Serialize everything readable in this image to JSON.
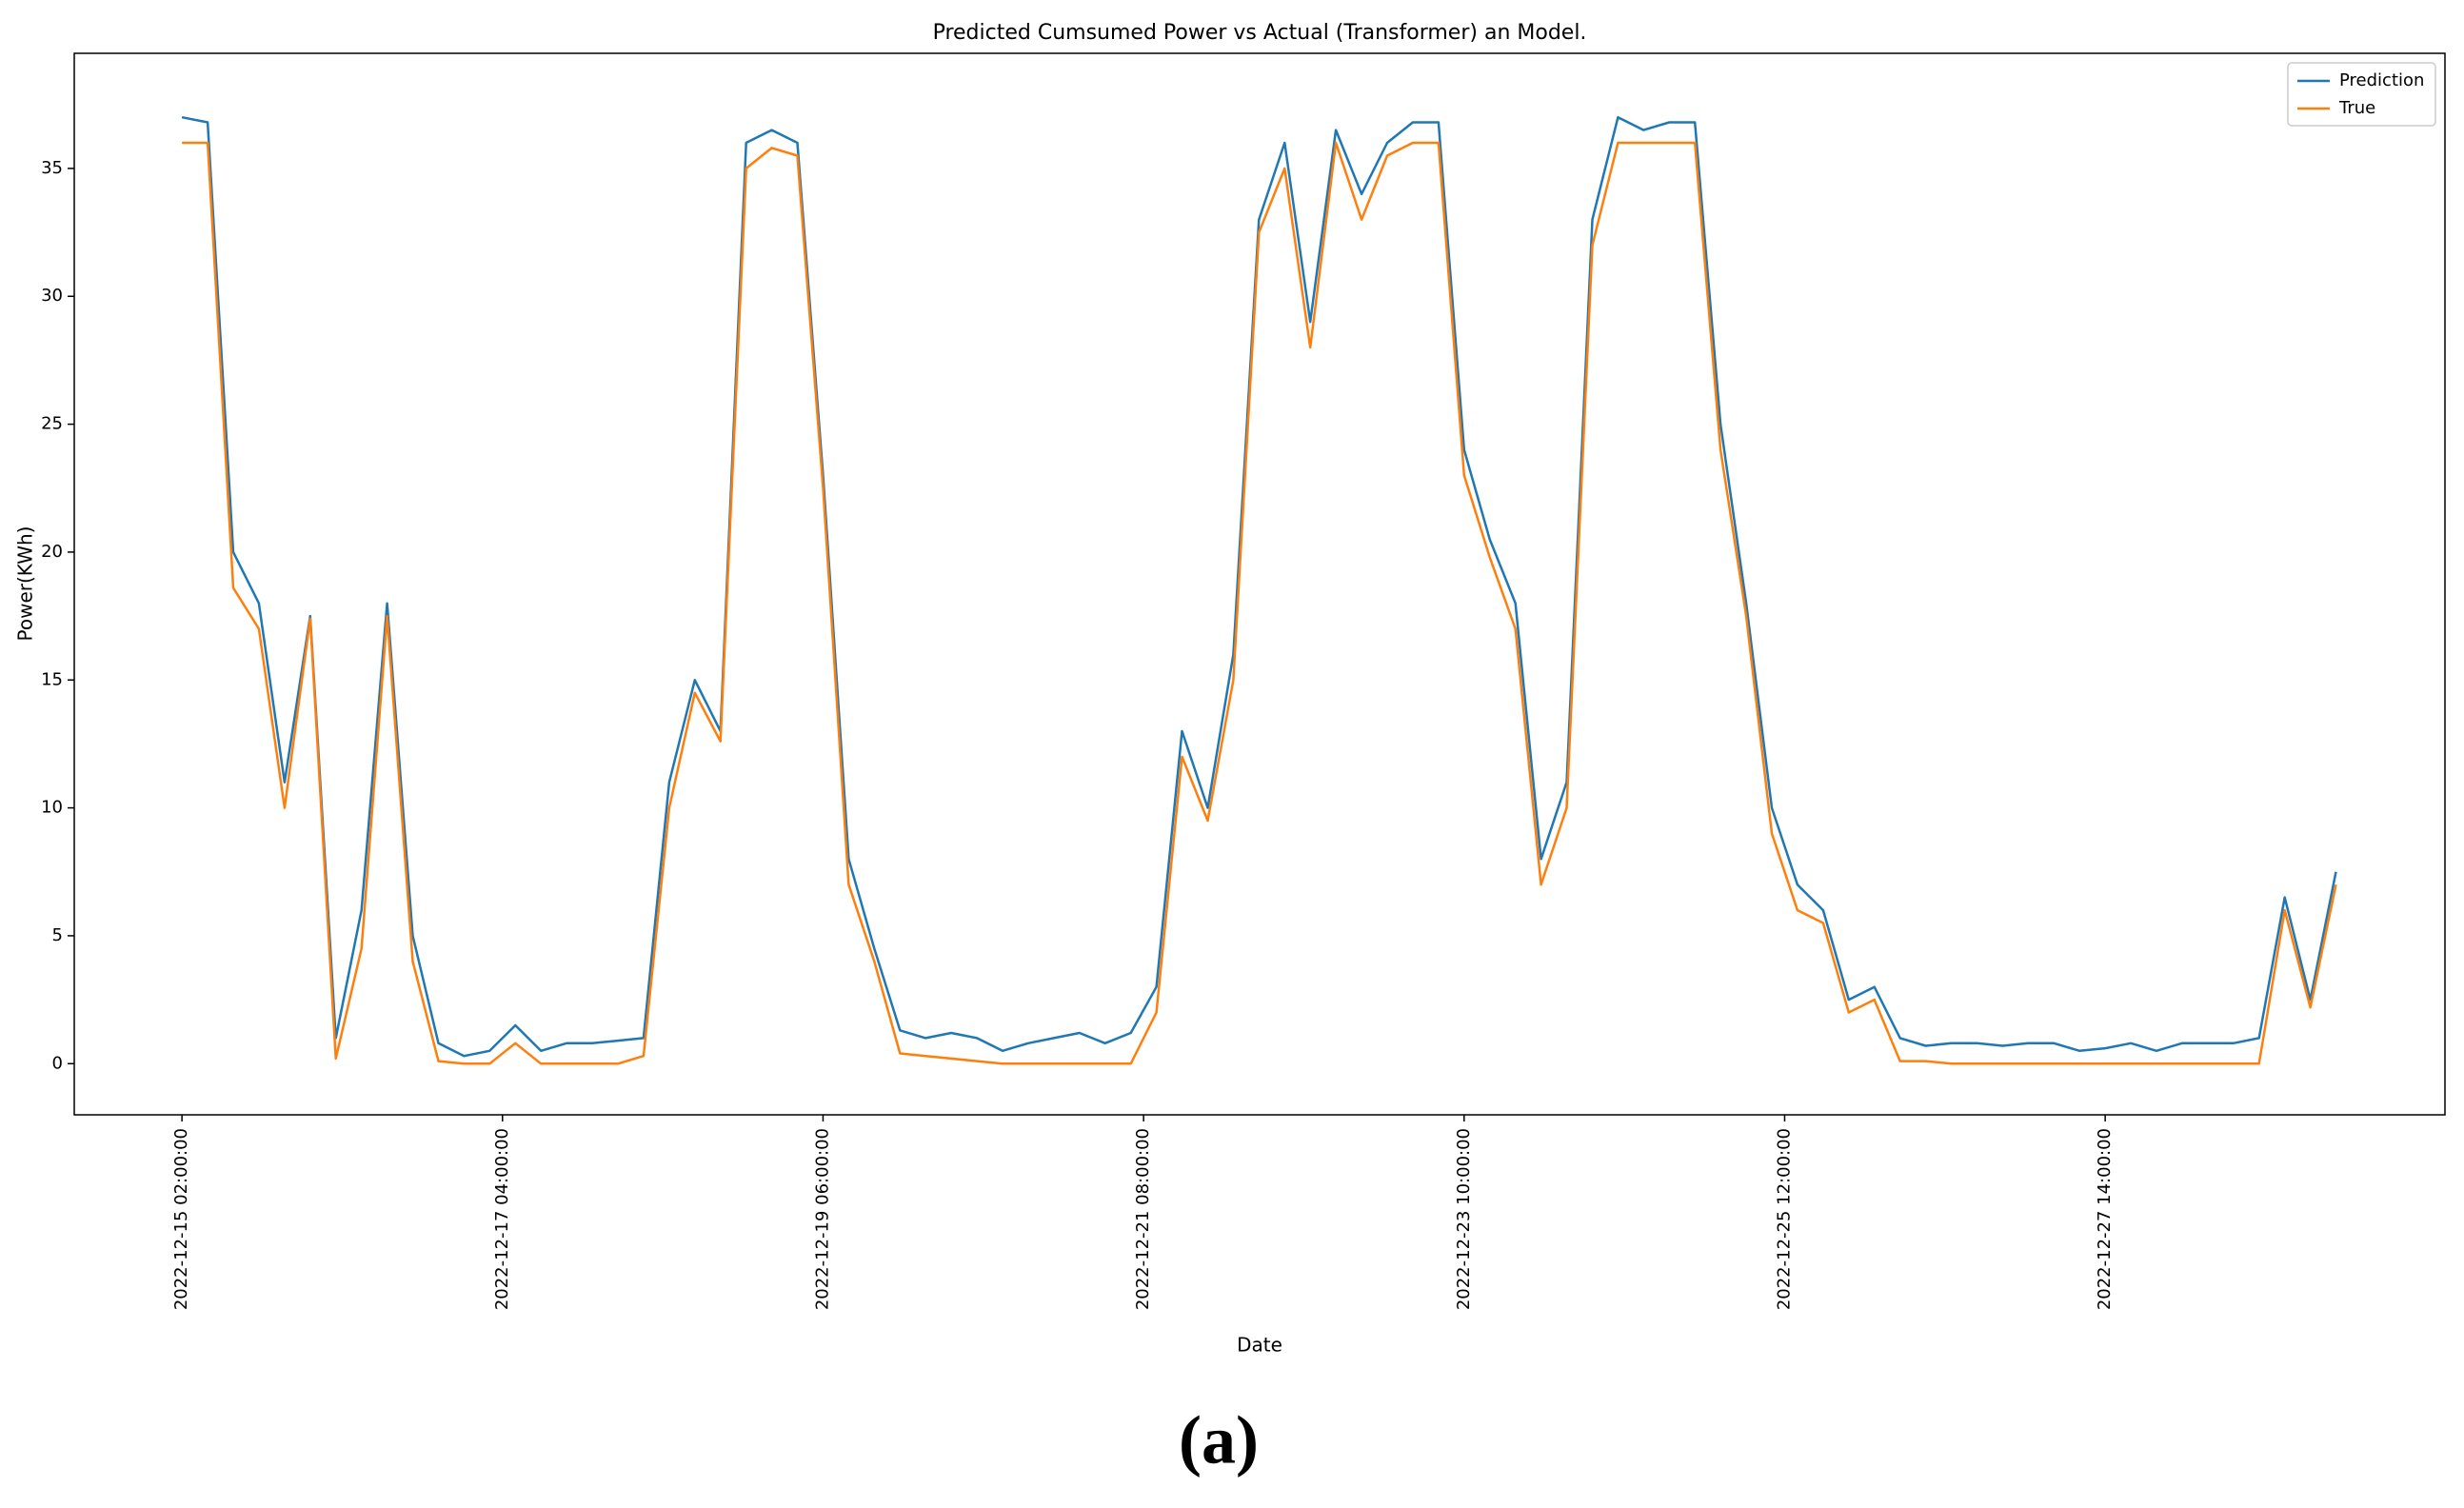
{
  "chart_data": {
    "type": "line",
    "title": "Predicted Cumsumed Power vs Actual (Transformer) an Model.",
    "xlabel": "Date",
    "ylabel": "Power(KWh)",
    "caption": "(a)",
    "legend": "upper right",
    "grid": false,
    "x": [
      "2022-12-15 02:00:00",
      "2022-12-15 06:00:00",
      "2022-12-15 10:00:00",
      "2022-12-15 14:00:00",
      "2022-12-15 18:00:00",
      "2022-12-15 22:00:00",
      "2022-12-16 02:00:00",
      "2022-12-16 06:00:00",
      "2022-12-16 10:00:00",
      "2022-12-16 14:00:00",
      "2022-12-16 18:00:00",
      "2022-12-16 22:00:00",
      "2022-12-17 02:00:00",
      "2022-12-17 06:00:00",
      "2022-12-17 10:00:00",
      "2022-12-17 14:00:00",
      "2022-12-17 18:00:00",
      "2022-12-17 22:00:00",
      "2022-12-18 02:00:00",
      "2022-12-18 06:00:00",
      "2022-12-18 10:00:00",
      "2022-12-18 14:00:00",
      "2022-12-18 18:00:00",
      "2022-12-18 22:00:00",
      "2022-12-19 02:00:00",
      "2022-12-19 06:00:00",
      "2022-12-19 10:00:00",
      "2022-12-19 14:00:00",
      "2022-12-19 18:00:00",
      "2022-12-19 22:00:00",
      "2022-12-20 02:00:00",
      "2022-12-20 06:00:00",
      "2022-12-20 10:00:00",
      "2022-12-20 14:00:00",
      "2022-12-20 18:00:00",
      "2022-12-20 22:00:00",
      "2022-12-21 02:00:00",
      "2022-12-21 06:00:00",
      "2022-12-21 10:00:00",
      "2022-12-21 14:00:00",
      "2022-12-21 18:00:00",
      "2022-12-21 22:00:00",
      "2022-12-22 02:00:00",
      "2022-12-22 06:00:00",
      "2022-12-22 10:00:00",
      "2022-12-22 14:00:00",
      "2022-12-22 18:00:00",
      "2022-12-22 22:00:00",
      "2022-12-23 02:00:00",
      "2022-12-23 06:00:00",
      "2022-12-23 10:00:00",
      "2022-12-23 14:00:00",
      "2022-12-23 18:00:00",
      "2022-12-23 22:00:00",
      "2022-12-24 02:00:00",
      "2022-12-24 06:00:00",
      "2022-12-24 10:00:00",
      "2022-12-24 14:00:00",
      "2022-12-24 18:00:00",
      "2022-12-24 22:00:00",
      "2022-12-25 02:00:00",
      "2022-12-25 06:00:00",
      "2022-12-25 10:00:00",
      "2022-12-25 14:00:00",
      "2022-12-25 18:00:00",
      "2022-12-25 22:00:00",
      "2022-12-26 02:00:00",
      "2022-12-26 06:00:00",
      "2022-12-26 10:00:00",
      "2022-12-26 14:00:00",
      "2022-12-26 18:00:00",
      "2022-12-26 22:00:00",
      "2022-12-27 02:00:00",
      "2022-12-27 06:00:00",
      "2022-12-27 10:00:00",
      "2022-12-27 14:00:00",
      "2022-12-27 18:00:00",
      "2022-12-27 22:00:00",
      "2022-12-28 02:00:00",
      "2022-12-28 06:00:00",
      "2022-12-28 10:00:00",
      "2022-12-28 14:00:00",
      "2022-12-28 18:00:00",
      "2022-12-28 22:00:00",
      "2022-12-29 02:00:00"
    ],
    "series": [
      {
        "name": "Prediction",
        "color": "#1f77b4",
        "values": [
          37,
          36.8,
          20,
          18,
          11,
          17.5,
          1,
          6,
          18,
          5,
          0.8,
          0.3,
          0.5,
          1.5,
          0.5,
          0.8,
          0.8,
          0.9,
          1,
          11,
          15,
          13,
          36,
          36.5,
          36,
          23,
          8,
          4.5,
          1.3,
          1,
          1.2,
          1,
          0.5,
          0.8,
          1,
          1.2,
          0.8,
          1.2,
          3,
          13,
          10,
          16,
          33,
          36,
          29,
          36.5,
          34,
          36,
          36.8,
          36.8,
          24,
          20.5,
          18,
          8,
          11,
          33,
          37,
          36.5,
          36.8,
          36.8,
          25,
          18,
          10,
          7,
          6,
          2.5,
          3,
          1,
          0.7,
          0.8,
          0.8,
          0.7,
          0.8,
          0.8,
          0.5,
          0.6,
          0.8,
          0.5,
          0.8,
          0.8,
          0.8,
          1,
          6.5,
          2.5,
          7.5
        ]
      },
      {
        "name": "True",
        "color": "#ff7f0e",
        "values": [
          36,
          36,
          18.6,
          17,
          10,
          17.4,
          0.2,
          4.5,
          17.5,
          4,
          0.1,
          0,
          0,
          0.8,
          0,
          0,
          0,
          0,
          0.3,
          10,
          14.5,
          12.6,
          35,
          35.8,
          35.5,
          22.5,
          7,
          4,
          0.4,
          0.3,
          0.2,
          0.1,
          0,
          0,
          0,
          0,
          0,
          0,
          2,
          12,
          9.5,
          15,
          32.5,
          35,
          28,
          36,
          33,
          35.5,
          36,
          36,
          23,
          19.8,
          17,
          7,
          10,
          32,
          36,
          36,
          36,
          36,
          24,
          17.5,
          9,
          6,
          5.5,
          2,
          2.5,
          0.1,
          0.1,
          0,
          0,
          0,
          0,
          0,
          0,
          0,
          0,
          0,
          0,
          0,
          0,
          0,
          6,
          2.2,
          7
        ]
      }
    ],
    "xlim": [
      "2022-12-14 09:12:00",
      "2022-12-29 19:00:00"
    ],
    "xticks": [
      "2022-12-15 02:00:00",
      "2022-12-17 04:00:00",
      "2022-12-19 06:00:00",
      "2022-12-21 08:00:00",
      "2022-12-23 10:00:00",
      "2022-12-25 12:00:00",
      "2022-12-27 14:00:00"
    ],
    "ylim": [
      -2,
      39.5
    ],
    "yticks": [
      0,
      5,
      10,
      15,
      20,
      25,
      30,
      35
    ]
  }
}
